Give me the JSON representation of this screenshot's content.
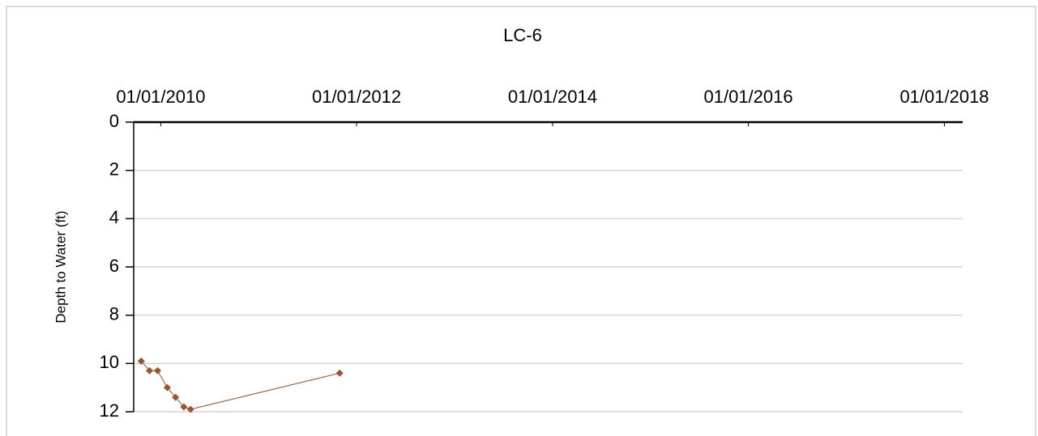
{
  "chart_data": {
    "type": "line",
    "title": "LC-6",
    "y_label": "Depth to Water (ft)",
    "x": [
      "2009-10-20",
      "2009-11-20",
      "2009-12-20",
      "2010-01-25",
      "2010-02-25",
      "2010-03-28",
      "2010-04-22",
      "2011-10-30"
    ],
    "values": [
      9.9,
      10.3,
      10.3,
      11.0,
      11.4,
      11.8,
      11.9,
      10.4
    ],
    "color": "#a0522d",
    "xlim": [
      "2009-09-22",
      "2018-03-10"
    ],
    "xticks": [
      {
        "value": "2010-01-01",
        "label": "01/01/2010"
      },
      {
        "value": "2012-01-01",
        "label": "01/01/2012"
      },
      {
        "value": "2014-01-01",
        "label": "01/01/2014"
      },
      {
        "value": "2016-01-01",
        "label": "01/01/2016"
      },
      {
        "value": "2018-01-01",
        "label": "01/01/2018"
      }
    ],
    "ylim": [
      0,
      12
    ],
    "yticks": [
      0,
      2,
      4,
      6,
      8,
      10,
      12
    ],
    "y_reversed": true,
    "grid": true
  }
}
